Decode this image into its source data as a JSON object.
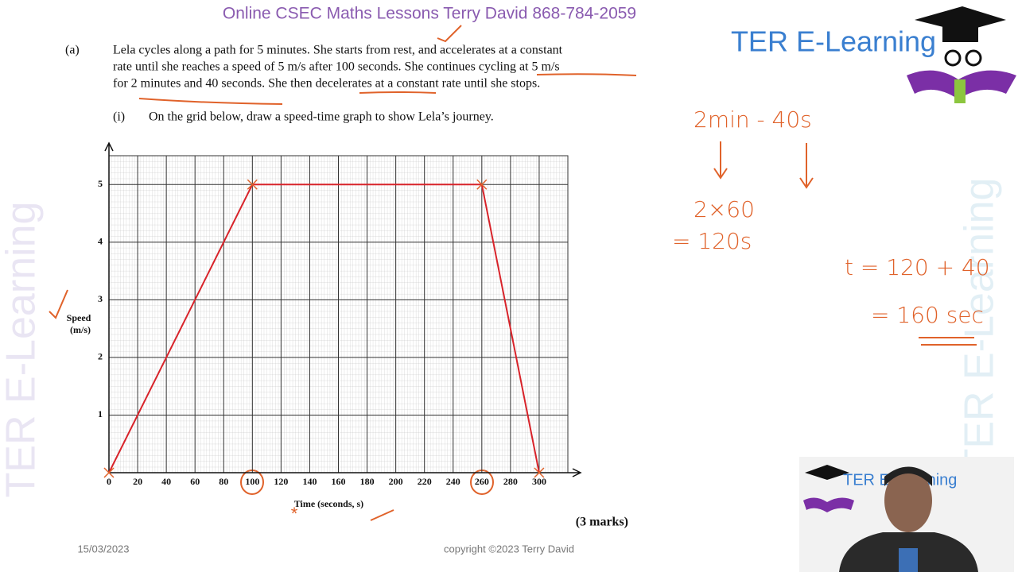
{
  "header": {
    "title": "Online CSEC Maths Lessons   Terry David  868-784-2059",
    "logo": "TER E-Learning"
  },
  "question": {
    "part": "(a)",
    "lines": [
      "Lela cycles along a path for 5 minutes.  She starts from rest, and accelerates at a constant",
      "rate until she reaches a speed of 5 m/s after 100 seconds.  She continues cycling at 5 m/s",
      "for 2 minutes and 40 seconds.  She then decelerates at a constant rate until she stops."
    ],
    "subpart": "(i)",
    "instruction": "On the grid below, draw a speed-time graph to show Lela’s journey.",
    "marks": "(3 marks)"
  },
  "chart_data": {
    "type": "line",
    "x": [
      0,
      100,
      260,
      300
    ],
    "values": [
      0,
      5,
      5,
      0
    ],
    "color": "#d8232a",
    "xlim": [
      0,
      320
    ],
    "ylim": [
      0,
      5.5
    ],
    "xticks": [
      0,
      20,
      40,
      60,
      80,
      100,
      120,
      140,
      160,
      180,
      200,
      220,
      240,
      260,
      280,
      300
    ],
    "yticks": [
      1,
      2,
      3,
      4,
      5
    ],
    "grid": true,
    "x_label": "Time (seconds, s)",
    "y_label": "Speed",
    "y_unit": "(m/s)"
  },
  "notes": [
    "2min - 40s",
    "2×60",
    "= 120s",
    "t = 120 + 40",
    "= 160 sec"
  ],
  "footer": {
    "date": "15/03/2023",
    "copyright": "copyright ©2023 Terry David"
  },
  "watermark": "TER E-Learning",
  "webcam_logo": "TER E-Learning"
}
